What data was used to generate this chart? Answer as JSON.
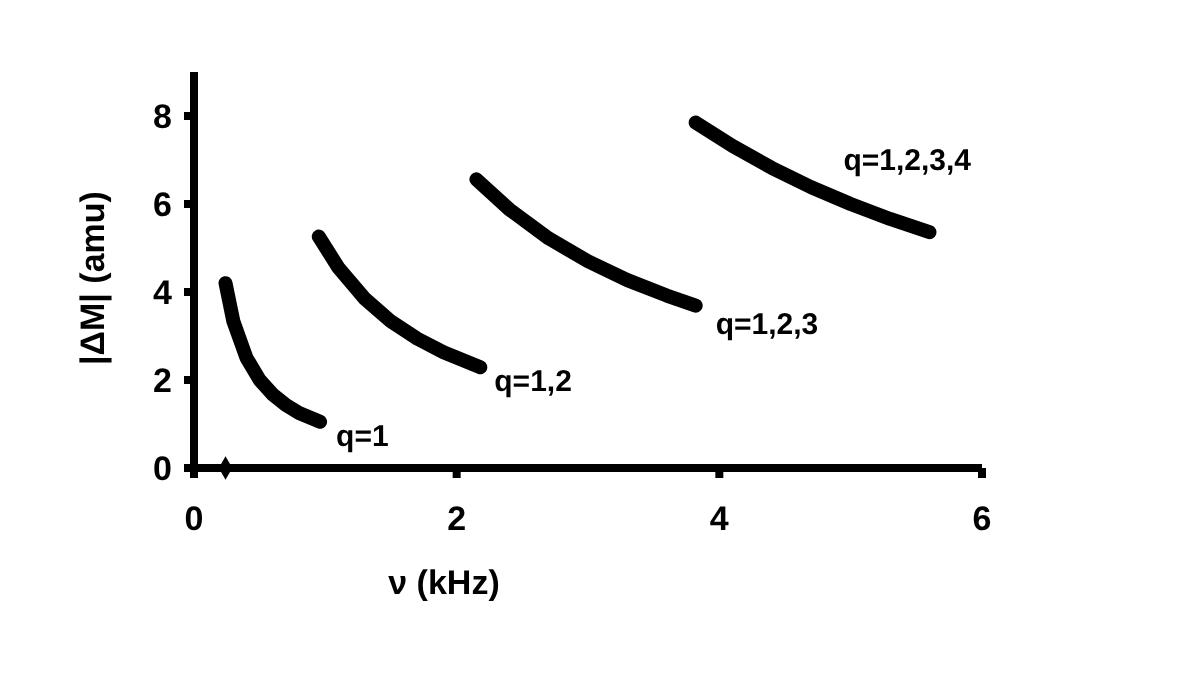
{
  "chart_data": {
    "type": "line",
    "xlabel": "ν (kHz)",
    "ylabel": "|ΔM| (amu)",
    "xlim": [
      0,
      6
    ],
    "xticks": [
      0,
      2,
      4,
      6
    ],
    "ylim": [
      0,
      9
    ],
    "yticks": [
      0,
      2,
      4,
      6,
      8
    ],
    "marker": "none",
    "line_style": "solid",
    "series": [
      {
        "name": "q=1",
        "color": "#000000",
        "x": [
          0.24,
          0.3,
          0.4,
          0.5,
          0.6,
          0.7,
          0.8,
          0.96
        ],
        "values": [
          4.2,
          3.33,
          2.5,
          2.0,
          1.67,
          1.43,
          1.25,
          1.05
        ]
      },
      {
        "name": "q=1,2",
        "color": "#000000",
        "x": [
          0.95,
          1.1,
          1.3,
          1.5,
          1.7,
          1.9,
          2.18
        ],
        "values": [
          5.26,
          4.55,
          3.85,
          3.33,
          2.94,
          2.63,
          2.29
        ]
      },
      {
        "name": "q=1,2,3",
        "color": "#000000",
        "x": [
          2.15,
          2.4,
          2.7,
          3.0,
          3.3,
          3.6,
          3.82
        ],
        "values": [
          6.56,
          5.88,
          5.22,
          4.7,
          4.27,
          3.92,
          3.69
        ]
      },
      {
        "name": "q=1,2,3,4",
        "color": "#000000",
        "x": [
          3.82,
          4.1,
          4.4,
          4.7,
          5.0,
          5.3,
          5.6
        ],
        "values": [
          7.85,
          7.32,
          6.82,
          6.38,
          6.0,
          5.66,
          5.36
        ]
      },
      {
        "type": "scatter",
        "marker": "diamond",
        "color": "#000000",
        "x": [
          0.24
        ],
        "values": [
          0
        ]
      }
    ]
  }
}
